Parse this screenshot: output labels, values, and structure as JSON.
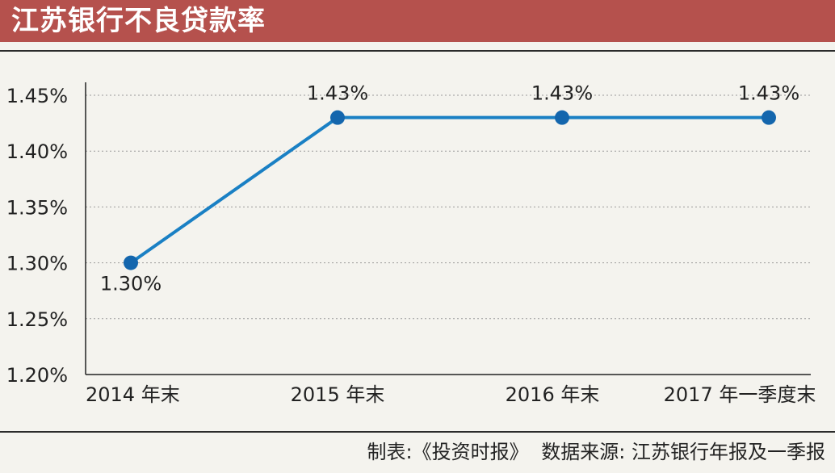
{
  "header": {
    "title": "江苏银行不良贷款率"
  },
  "footer": {
    "credit": "制表:《投资时报》",
    "source": "数据来源: 江苏银行年报及一季报"
  },
  "colors": {
    "title_bg": "#b5514d",
    "line": "#1a80c4",
    "marker": "#1466ad"
  },
  "chart_data": {
    "type": "line",
    "title": "江苏银行不良贷款率",
    "categories": [
      "2014 年末",
      "2015 年末",
      "2016 年末",
      "2017 年一季度末"
    ],
    "series": [
      {
        "values": [
          1.3,
          1.43,
          1.43,
          1.43
        ],
        "labels": [
          "1.30%",
          "1.43%",
          "1.43%",
          "1.43%"
        ]
      }
    ],
    "ylim": [
      1.2,
      1.45
    ],
    "yticks": [
      "1.20%",
      "1.25%",
      "1.30%",
      "1.35%",
      "1.40%",
      "1.45%"
    ],
    "grid": true,
    "xlabel": "",
    "ylabel": ""
  }
}
